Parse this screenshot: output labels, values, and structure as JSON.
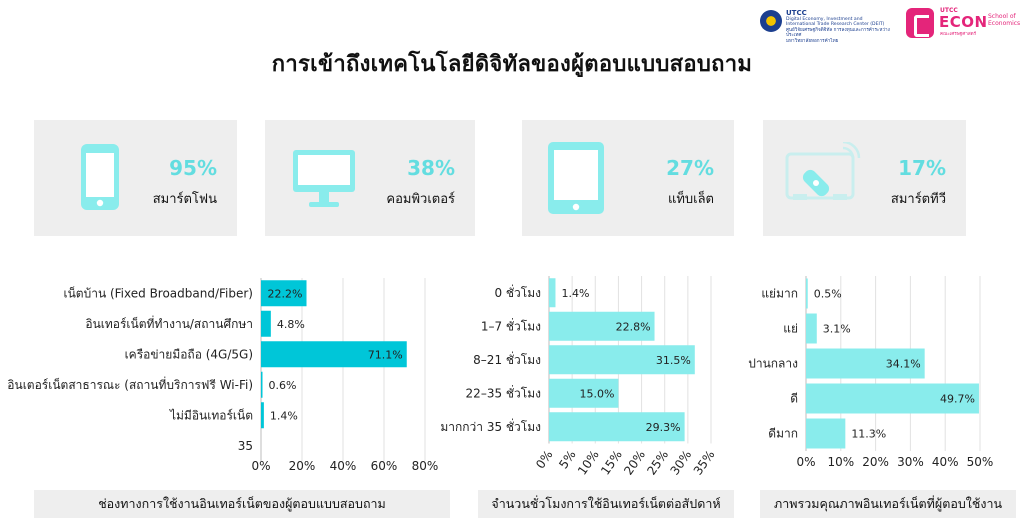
{
  "title": "การเข้าถึงเทคโนโลยีดิจิทัลของผู้ตอบแบบสอบถาม",
  "logos": {
    "utcc": {
      "name": "UTCC",
      "line1": "Digital Economy, Investment and",
      "line2": "International Trade Research Center (DEIT)",
      "line3": "ศูนย์วิจัยเศรษฐกิจดิจิทัล การลงทุนและการค้าระหว่างประเทศ",
      "line4": "มหาวิทยาลัยหอการค้าไทย"
    },
    "econ": {
      "top": "UTCC",
      "brand": "ECON",
      "school1": "School of",
      "school2": "Economics",
      "thai": "คณะเศรษฐศาสตร์"
    }
  },
  "devices": [
    {
      "percent": "95%",
      "label": "สมาร์ตโฟน",
      "icon": "smartphone-icon"
    },
    {
      "percent": "38%",
      "label": "คอมพิวเตอร์",
      "icon": "computer-monitor-icon"
    },
    {
      "percent": "27%",
      "label": "แท็บเล็ต",
      "icon": "tablet-icon"
    },
    {
      "percent": "17%",
      "label": "สมาร์ตทีวี",
      "icon": "smart-tv-icon"
    }
  ],
  "colors": {
    "accent_dark": "#00c6d8",
    "accent_light": "#89ecec",
    "card_bg": "#eeeeee",
    "percent_text": "#63dde0"
  },
  "chart_data": [
    {
      "type": "bar",
      "orientation": "horizontal",
      "title": "ช่องทางการใช้งานอินเทอร์เน็ตของผู้ตอบแบบสอบถาม",
      "categories": [
        "เน็ตบ้าน (Fixed Broadband/Fiber)",
        "อินเทอร์เน็ตที่ทำงาน/สถานศึกษา",
        "เครือข่ายมือถือ (4G/5G)",
        "อินเตอร์เน็ตสาธารณะ (สถานที่บริการฟรี Wi-Fi)",
        "ไม่มีอินเทอร์เน็ต",
        "35"
      ],
      "values": [
        22.2,
        4.8,
        71.1,
        0.6,
        1.4,
        null
      ],
      "data_labels": [
        "22.2%",
        "4.8%",
        "71.1%",
        "0.6%",
        "1.4%",
        ""
      ],
      "xlim": [
        0,
        80
      ],
      "xticks": [
        "0%",
        "20%",
        "40%",
        "60%",
        "80%"
      ],
      "grid": true,
      "bar_color": "#00c6d8"
    },
    {
      "type": "bar",
      "orientation": "horizontal",
      "title": "จำนวนชั่วโมงการใช้อินเทอร์เน็ตต่อสัปดาห์",
      "categories": [
        "0 ชั่วโมง",
        "1–7 ชั่วโมง",
        "8–21 ชั่วโมง",
        "22–35 ชั่วโมง",
        "มากกว่า 35 ชั่วโมง"
      ],
      "values": [
        1.4,
        22.8,
        31.5,
        15.0,
        29.3
      ],
      "data_labels": [
        "1.4%",
        "22.8%",
        "31.5%",
        "15.0%",
        "29.3%"
      ],
      "xlim": [
        0,
        35
      ],
      "xticks": [
        "0%",
        "5%",
        "10%",
        "15%",
        "20%",
        "25%",
        "30%",
        "35%"
      ],
      "grid": true,
      "bar_color": "#89ecec"
    },
    {
      "type": "bar",
      "orientation": "horizontal",
      "title": "ภาพรวมคุณภาพอินเทอร์เน็ตที่ผู้ตอบใช้งาน",
      "categories": [
        "แย่มาก",
        "แย่",
        "ปานกลาง",
        "ดี",
        "ดีมาก"
      ],
      "values": [
        0.5,
        3.1,
        34.1,
        49.7,
        11.3
      ],
      "data_labels": [
        "0.5%",
        "3.1%",
        "34.1%",
        "49.7%",
        "11.3%"
      ],
      "xlim": [
        0,
        50
      ],
      "xticks": [
        "0%",
        "10%",
        "20%",
        "30%",
        "40%",
        "50%"
      ],
      "grid": true,
      "bar_color": "#89ecec"
    }
  ]
}
